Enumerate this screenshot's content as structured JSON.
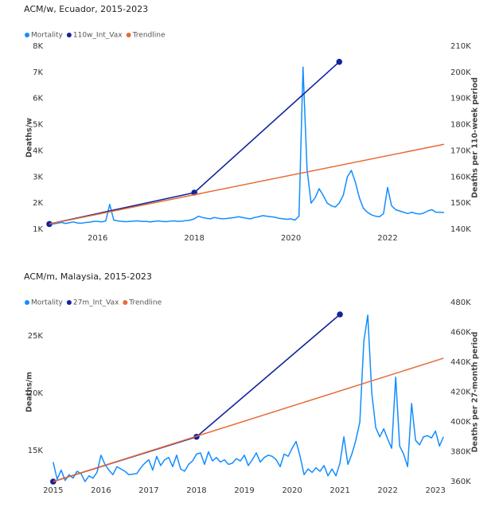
{
  "chart_data": [
    {
      "type": "line",
      "title": "ACM/w, Ecuador, 2015-2023",
      "y_label": "Deaths/w",
      "y2_label": "Deaths per 110-week period",
      "xlim": [
        2015,
        2023.17
      ],
      "xticks": [
        2016,
        2018,
        2020,
        2022
      ],
      "ylim": [
        1000,
        8000
      ],
      "yticks": [
        {
          "value": 1000,
          "label": "1K"
        },
        {
          "value": 2000,
          "label": "2K"
        },
        {
          "value": 3000,
          "label": "3K"
        },
        {
          "value": 4000,
          "label": "4K"
        },
        {
          "value": 5000,
          "label": "5K"
        },
        {
          "value": 6000,
          "label": "6K"
        },
        {
          "value": 7000,
          "label": "7K"
        },
        {
          "value": 8000,
          "label": "8K"
        }
      ],
      "y2lim": [
        140000,
        210000
      ],
      "y2ticks": [
        {
          "value": 140000,
          "label": "140K"
        },
        {
          "value": 150000,
          "label": "150K"
        },
        {
          "value": 160000,
          "label": "160K"
        },
        {
          "value": 170000,
          "label": "170K"
        },
        {
          "value": 180000,
          "label": "180K"
        },
        {
          "value": 190000,
          "label": "190K"
        },
        {
          "value": 200000,
          "label": "200K"
        },
        {
          "value": 210000,
          "label": "210K"
        }
      ],
      "series": [
        {
          "name": "Mortality",
          "color": "#118DFF",
          "axis": "y",
          "x": [
            2015,
            2015.083,
            2015.167,
            2015.25,
            2015.333,
            2015.417,
            2015.5,
            2015.583,
            2015.667,
            2015.75,
            2015.833,
            2015.917,
            2016,
            2016.083,
            2016.167,
            2016.25,
            2016.333,
            2016.417,
            2016.5,
            2016.583,
            2016.667,
            2016.75,
            2016.833,
            2016.917,
            2017,
            2017.083,
            2017.167,
            2017.25,
            2017.333,
            2017.417,
            2017.5,
            2017.583,
            2017.667,
            2017.75,
            2017.833,
            2017.917,
            2018,
            2018.083,
            2018.167,
            2018.25,
            2018.333,
            2018.417,
            2018.5,
            2018.583,
            2018.667,
            2018.75,
            2018.833,
            2018.917,
            2019,
            2019.083,
            2019.167,
            2019.25,
            2019.333,
            2019.417,
            2019.5,
            2019.583,
            2019.667,
            2019.75,
            2019.833,
            2019.917,
            2020,
            2020.083,
            2020.167,
            2020.25,
            2020.333,
            2020.417,
            2020.5,
            2020.583,
            2020.667,
            2020.75,
            2020.833,
            2020.917,
            2021,
            2021.083,
            2021.167,
            2021.25,
            2021.333,
            2021.417,
            2021.5,
            2021.583,
            2021.667,
            2021.75,
            2021.833,
            2021.917,
            2022,
            2022.083,
            2022.167,
            2022.25,
            2022.333,
            2022.417,
            2022.5,
            2022.583,
            2022.667,
            2022.75,
            2022.833,
            2022.917,
            2023,
            2023.083,
            2023.167
          ],
          "values": [
            1250,
            1200,
            1230,
            1260,
            1220,
            1250,
            1280,
            1240,
            1230,
            1260,
            1270,
            1300,
            1300,
            1280,
            1320,
            1950,
            1350,
            1320,
            1300,
            1290,
            1300,
            1310,
            1320,
            1300,
            1300,
            1280,
            1300,
            1320,
            1300,
            1290,
            1310,
            1320,
            1300,
            1310,
            1330,
            1350,
            1400,
            1500,
            1450,
            1420,
            1400,
            1450,
            1420,
            1400,
            1410,
            1430,
            1450,
            1480,
            1450,
            1420,
            1400,
            1450,
            1480,
            1520,
            1500,
            1480,
            1460,
            1420,
            1400,
            1380,
            1400,
            1350,
            1500,
            7200,
            3300,
            2000,
            2200,
            2550,
            2300,
            2000,
            1900,
            1850,
            2000,
            2300,
            3000,
            3250,
            2800,
            2200,
            1800,
            1650,
            1550,
            1500,
            1480,
            1600,
            2600,
            1900,
            1750,
            1700,
            1650,
            1600,
            1650,
            1600,
            1580,
            1620,
            1700,
            1750,
            1650,
            1650,
            1640
          ]
        },
        {
          "name": "110w_Int_Vax",
          "color": "#12239E",
          "axis": "y2",
          "markers": true,
          "x": [
            2015,
            2018,
            2021
          ],
          "values": [
            142000,
            154000,
            204000
          ]
        },
        {
          "name": "Trendline",
          "color": "#E66C37",
          "axis": "y2",
          "x": [
            2015,
            2023.17
          ],
          "values": [
            142000,
            172500
          ]
        }
      ]
    },
    {
      "type": "line",
      "title": "ACM/m, Malaysia, 2015-2023",
      "y_label": "Deaths/m",
      "y2_label": "Deaths per 27-month period",
      "xlim": [
        2014.92,
        2023.18
      ],
      "xticks": [
        2015,
        2016,
        2017,
        2018,
        2019,
        2020,
        2021,
        2022,
        2023
      ],
      "ylim": [
        12300,
        27900
      ],
      "yticks": [
        {
          "value": 15000,
          "label": "15K"
        },
        {
          "value": 20000,
          "label": "20K"
        },
        {
          "value": 25000,
          "label": "25K"
        }
      ],
      "y2lim": [
        360000,
        480000
      ],
      "y2ticks": [
        {
          "value": 360000,
          "label": "360K"
        },
        {
          "value": 380000,
          "label": "380K"
        },
        {
          "value": 400000,
          "label": "400K"
        },
        {
          "value": 420000,
          "label": "420K"
        },
        {
          "value": 440000,
          "label": "440K"
        },
        {
          "value": 460000,
          "label": "460K"
        },
        {
          "value": 480000,
          "label": "480K"
        }
      ],
      "series": [
        {
          "name": "Mortality",
          "color": "#118DFF",
          "axis": "y",
          "x": [
            2015,
            2015.083,
            2015.167,
            2015.25,
            2015.333,
            2015.417,
            2015.5,
            2015.583,
            2015.667,
            2015.75,
            2015.833,
            2015.917,
            2016,
            2016.083,
            2016.167,
            2016.25,
            2016.333,
            2016.417,
            2016.5,
            2016.583,
            2016.667,
            2016.75,
            2016.833,
            2016.917,
            2017,
            2017.083,
            2017.167,
            2017.25,
            2017.333,
            2017.417,
            2017.5,
            2017.583,
            2017.667,
            2017.75,
            2017.833,
            2017.917,
            2018,
            2018.083,
            2018.167,
            2018.25,
            2018.333,
            2018.417,
            2018.5,
            2018.583,
            2018.667,
            2018.75,
            2018.833,
            2018.917,
            2019,
            2019.083,
            2019.167,
            2019.25,
            2019.333,
            2019.417,
            2019.5,
            2019.583,
            2019.667,
            2019.75,
            2019.833,
            2019.917,
            2020,
            2020.083,
            2020.167,
            2020.25,
            2020.333,
            2020.417,
            2020.5,
            2020.583,
            2020.667,
            2020.75,
            2020.833,
            2020.917,
            2021,
            2021.083,
            2021.167,
            2021.25,
            2021.333,
            2021.417,
            2021.5,
            2021.583,
            2021.667,
            2021.75,
            2021.833,
            2021.917,
            2022,
            2022.083,
            2022.167,
            2022.25,
            2022.333,
            2022.417,
            2022.5,
            2022.583,
            2022.667,
            2022.75,
            2022.833,
            2022.917,
            2023,
            2023.083,
            2023.167
          ],
          "values": [
            14000,
            12500,
            13300,
            12400,
            12900,
            12600,
            13200,
            13000,
            12300,
            12800,
            12600,
            13100,
            14600,
            13800,
            13300,
            12900,
            13600,
            13400,
            13200,
            12900,
            12950,
            13000,
            13500,
            13900,
            14200,
            13300,
            14500,
            13700,
            14200,
            14400,
            13600,
            14600,
            13400,
            13200,
            13800,
            14100,
            14700,
            14800,
            13800,
            14900,
            14100,
            14400,
            14000,
            14200,
            13800,
            13900,
            14300,
            14100,
            14600,
            13700,
            14200,
            14800,
            14000,
            14400,
            14600,
            14500,
            14200,
            13600,
            14700,
            14500,
            15200,
            15800,
            14500,
            12900,
            13400,
            13100,
            13500,
            13200,
            13700,
            12800,
            13400,
            12800,
            13900,
            16200,
            13800,
            14700,
            15900,
            17500,
            24500,
            26800,
            20000,
            17000,
            16200,
            16900,
            16000,
            15200,
            21400,
            15400,
            14700,
            13600,
            19100,
            15900,
            15500,
            16200,
            16300,
            16100,
            16700,
            15400,
            16200
          ]
        },
        {
          "name": "27m_Int_Vax",
          "color": "#12239E",
          "axis": "y2",
          "markers": true,
          "x": [
            2015,
            2018,
            2021
          ],
          "values": [
            360000,
            390000,
            472000
          ]
        },
        {
          "name": "Trendline",
          "color": "#E66C37",
          "axis": "y2",
          "x": [
            2015,
            2023.17
          ],
          "values": [
            360000,
            442700
          ]
        }
      ]
    }
  ]
}
